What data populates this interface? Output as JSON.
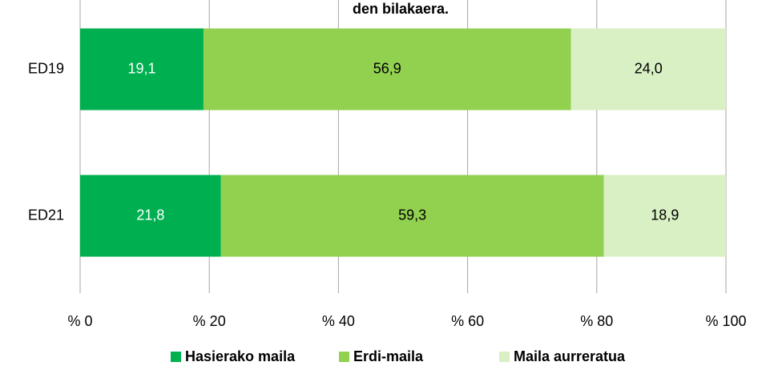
{
  "chart_data": {
    "type": "stacked-bar-horizontal",
    "title": "den bilakaera.",
    "categories": [
      "ED19",
      "ED21"
    ],
    "series": [
      {
        "name": "Hasierako maila",
        "color": "#00b050",
        "values": [
          19.1,
          21.8
        ],
        "value_labels": [
          "19,1",
          "21,8"
        ]
      },
      {
        "name": "Erdi-maila",
        "color": "#92d050",
        "values": [
          56.9,
          59.3
        ],
        "value_labels": [
          "56,9",
          "59,3"
        ]
      },
      {
        "name": "Maila aurreratua",
        "color": "#d8f0c4",
        "values": [
          24.0,
          18.9
        ],
        "value_labels": [
          "24,0",
          "18,9"
        ]
      }
    ],
    "xlim": [
      0,
      100
    ],
    "xticks": [
      {
        "value": 0,
        "label": "% 0"
      },
      {
        "value": 20,
        "label": "% 20"
      },
      {
        "value": 40,
        "label": "% 40"
      },
      {
        "value": 60,
        "label": "% 60"
      },
      {
        "value": 80,
        "label": "% 80"
      },
      {
        "value": 100,
        "label": "% 100"
      }
    ],
    "grid": true,
    "legend": "bottom"
  }
}
